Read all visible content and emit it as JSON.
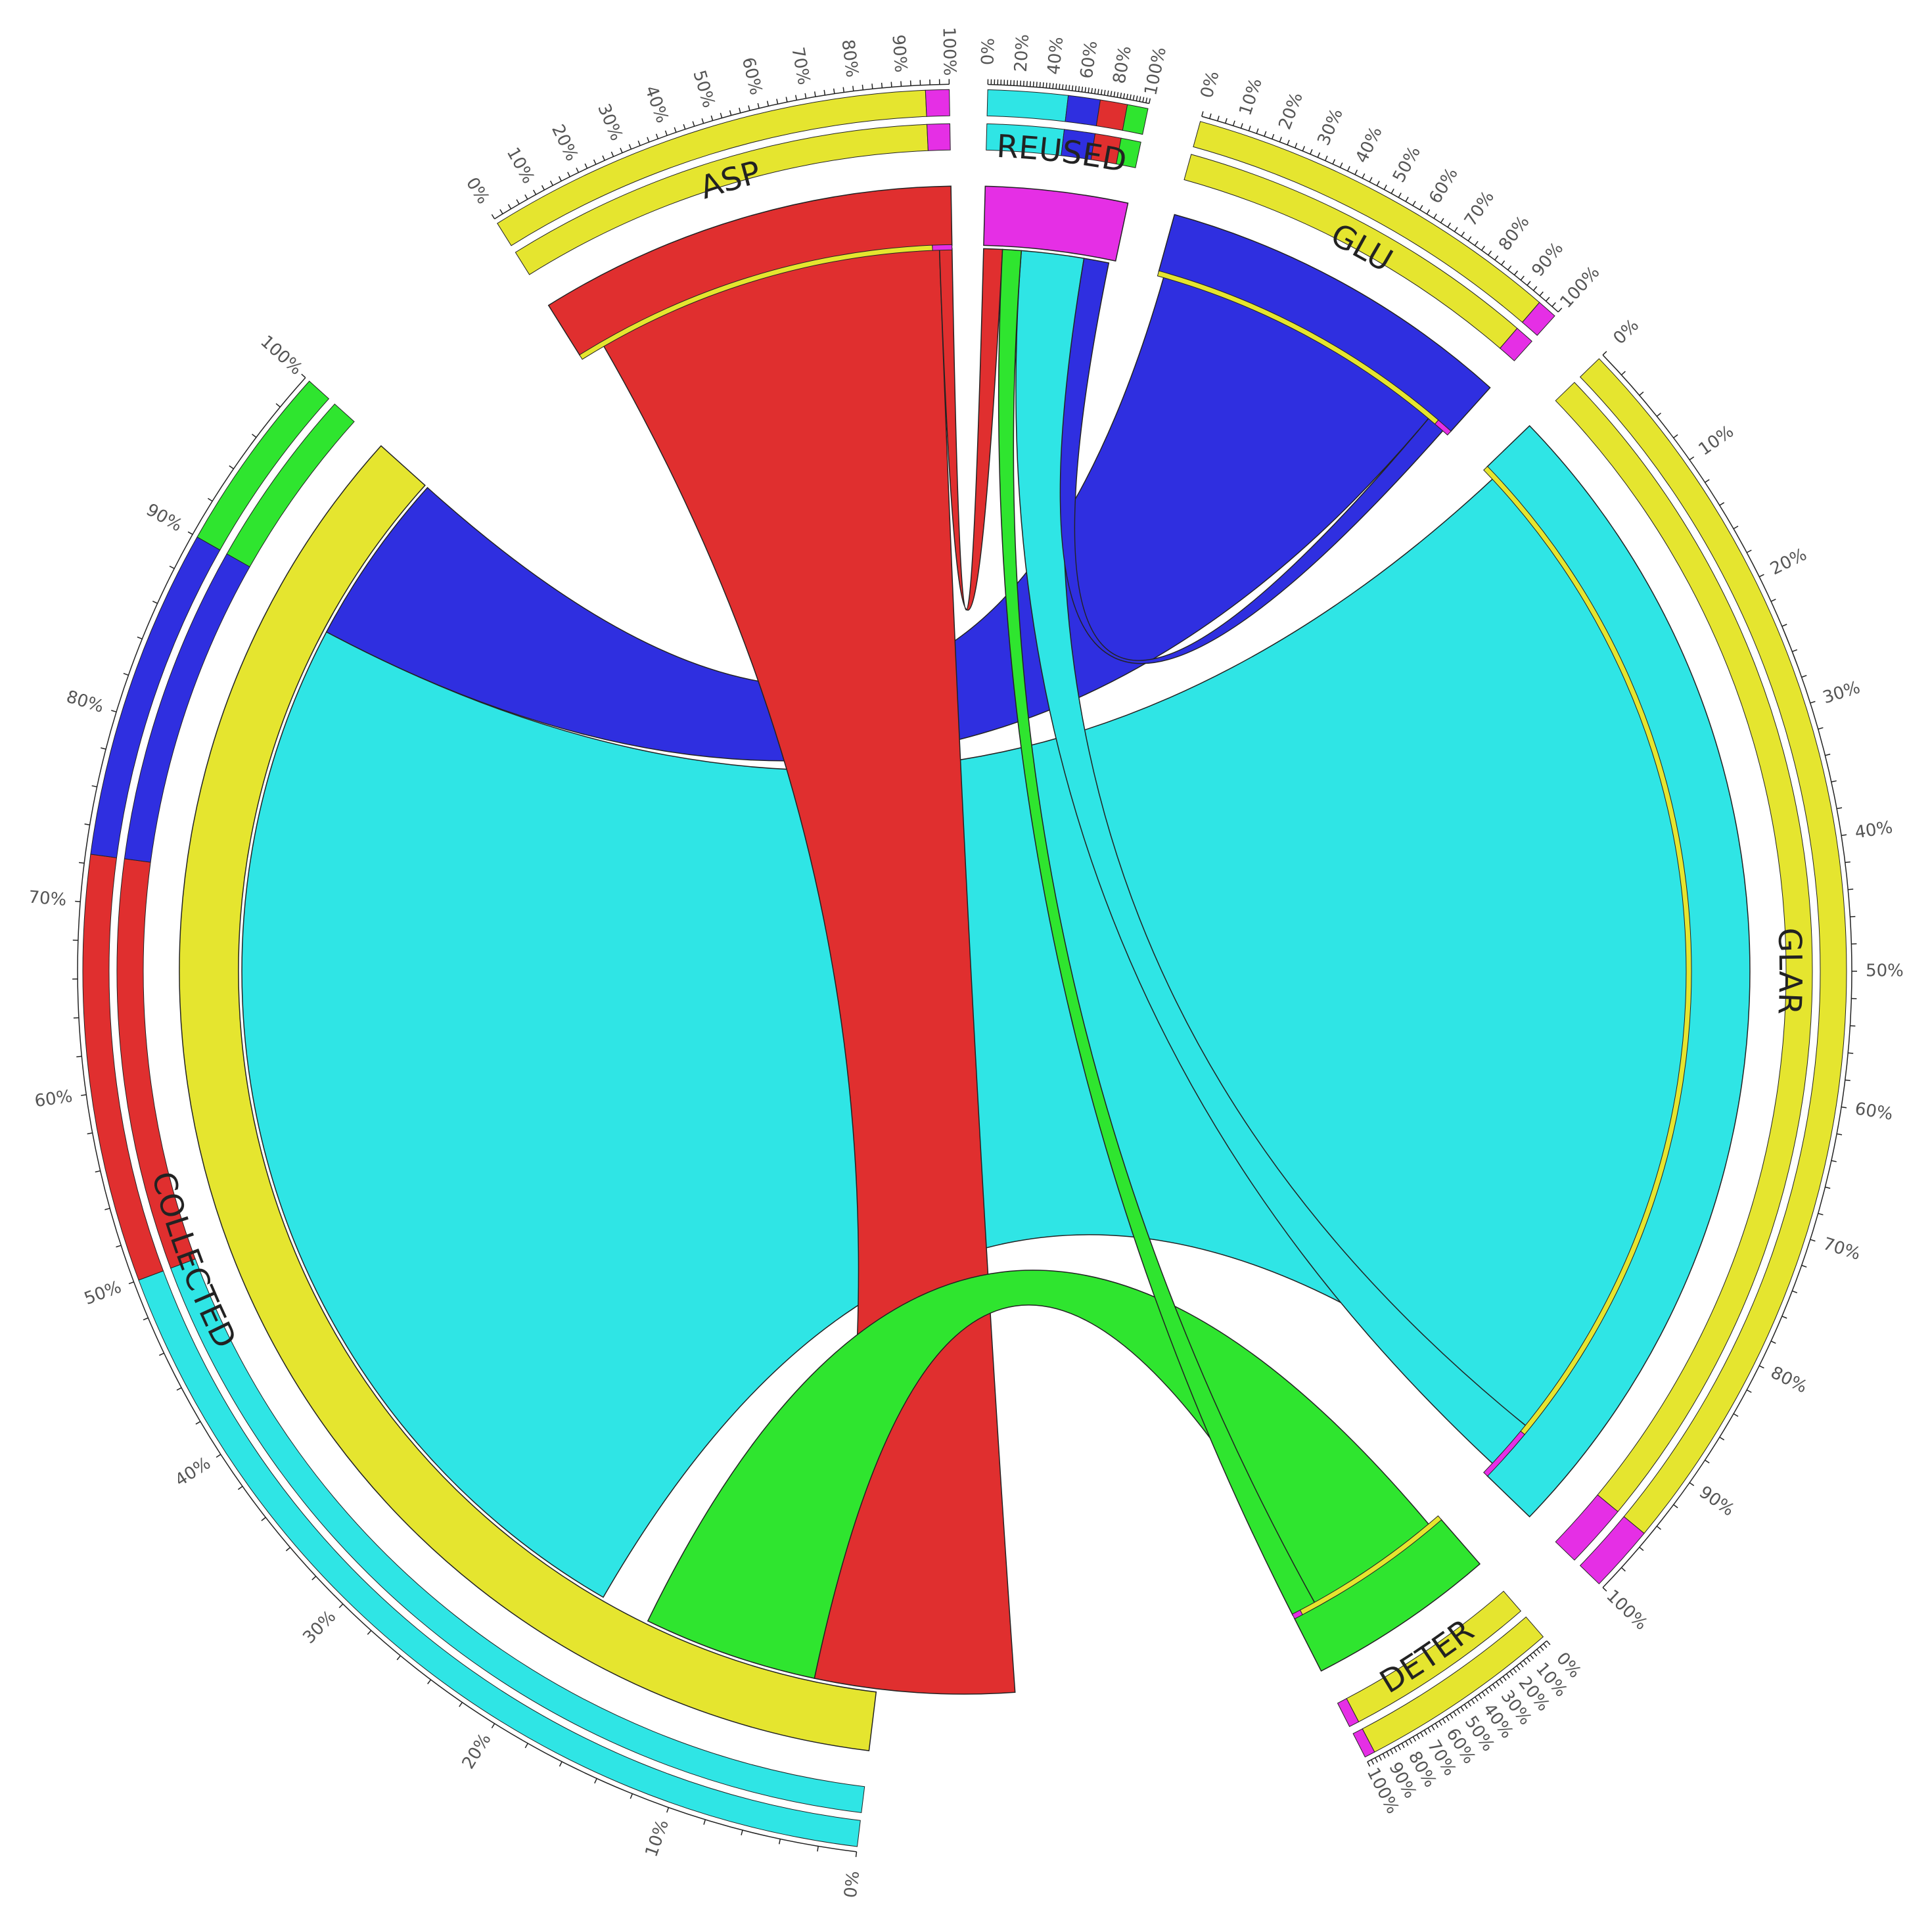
{
  "chart_data": {
    "type": "chord",
    "title": "",
    "colors": {
      "GLAR": "#2fe5e5",
      "GLU": "#2f2fe0",
      "ASP": "#e02f2f",
      "DETER": "#2fe52f",
      "REUSED": "#e52fe5",
      "COLLECTED": "#e5e52f"
    },
    "segments": [
      {
        "name": "COLLECTED",
        "label": "COLLECTED",
        "start_deg": 187,
        "end_deg": 312,
        "color": "#e5e52f"
      },
      {
        "name": "ASP",
        "label": "ASP",
        "start_deg": 328,
        "end_deg": 359,
        "color": "#e02f2f"
      },
      {
        "name": "REUSED",
        "label": "REUSED",
        "start_deg": 1.5,
        "end_deg": 12,
        "color": "#e52fe5"
      },
      {
        "name": "GLU",
        "label": "GLU",
        "start_deg": 15.5,
        "end_deg": 42,
        "color": "#2f2fe0"
      },
      {
        "name": "GLAR",
        "label": "GLAR",
        "start_deg": 46,
        "end_deg": 134,
        "color": "#2fe5e5"
      },
      {
        "name": "DETER",
        "label": "DETER",
        "start_deg": 139,
        "end_deg": 153,
        "color": "#2fe52f"
      }
    ],
    "flows": [
      {
        "from": "GLAR",
        "to": "COLLECTED",
        "color": "#2fe5e5",
        "a1": 47,
        "a2": 129,
        "b1": 210,
        "b2": 298
      },
      {
        "from": "GLU",
        "to": "COLLECTED",
        "color": "#2f2fe0",
        "a1": 16,
        "a2": 40,
        "b1": 298,
        "b2": 312
      },
      {
        "from": "ASP",
        "to": "COLLECTED",
        "color": "#e02f2f",
        "a1": 330,
        "a2": 358,
        "b1": 176,
        "b2": 192
      },
      {
        "from": "DETER",
        "to": "COLLECTED",
        "color": "#2fe52f",
        "a1": 140,
        "a2": 151,
        "b1": 192,
        "b2": 206
      },
      {
        "from": "REUSED",
        "to": "GLAR",
        "color": "#2fe5e5",
        "a1": 4.5,
        "a2": 9.5,
        "b1": 129,
        "b2": 133
      },
      {
        "from": "REUSED",
        "to": "GLU",
        "color": "#2f2fe0",
        "a1": 9.5,
        "a2": 11.5,
        "b1": 40,
        "b2": 41.5
      },
      {
        "from": "REUSED",
        "to": "ASP",
        "color": "#e02f2f",
        "a1": 1.5,
        "a2": 3.0,
        "b1": 358,
        "b2": 359
      },
      {
        "from": "REUSED",
        "to": "DETER",
        "color": "#2fe52f",
        "a1": 3.0,
        "a2": 4.5,
        "b1": 151,
        "b2": 153
      }
    ],
    "stack_bars": [
      {
        "segment": "COLLECTED",
        "parts": [
          {
            "color": "#2fe5e5",
            "frac": 0.5
          },
          {
            "color": "#e02f2f",
            "frac": 0.225
          },
          {
            "color": "#2f2fe0",
            "frac": 0.175
          },
          {
            "color": "#2fe52f",
            "frac": 0.1
          }
        ]
      },
      {
        "segment": "ASP",
        "parts": [
          {
            "color": "#e5e52f",
            "frac": 0.95
          },
          {
            "color": "#e52fe5",
            "frac": 0.05
          }
        ]
      },
      {
        "segment": "REUSED",
        "parts": [
          {
            "color": "#2fe5e5",
            "frac": 0.5
          },
          {
            "color": "#2f2fe0",
            "frac": 0.2
          },
          {
            "color": "#e02f2f",
            "frac": 0.17
          },
          {
            "color": "#2fe52f",
            "frac": 0.13
          }
        ]
      },
      {
        "segment": "GLU",
        "parts": [
          {
            "color": "#e5e52f",
            "frac": 0.95
          },
          {
            "color": "#e52fe5",
            "frac": 0.05
          }
        ]
      },
      {
        "segment": "GLAR",
        "parts": [
          {
            "color": "#e5e52f",
            "frac": 0.95
          },
          {
            "color": "#e52fe5",
            "frac": 0.05
          }
        ]
      },
      {
        "segment": "DETER",
        "parts": [
          {
            "color": "#e5e52f",
            "frac": 0.95
          },
          {
            "color": "#e52fe5",
            "frac": 0.05
          }
        ]
      }
    ],
    "inner_fill": [
      {
        "segment": "ASP",
        "color": "#e5e52f",
        "frac": 0.95,
        "tail_color": "#e52fe5"
      },
      {
        "segment": "GLU",
        "color": "#e5e52f",
        "frac": 0.95,
        "tail_color": "#e52fe5"
      },
      {
        "segment": "GLAR",
        "color": "#e5e52f",
        "frac": 0.95,
        "tail_color": "#e52fe5"
      },
      {
        "segment": "DETER",
        "color": "#e5e52f",
        "frac": 0.95,
        "tail_color": "#e52fe5"
      }
    ],
    "tick_labels": [
      "0%",
      "10%",
      "20%",
      "30%",
      "40%",
      "50%",
      "60%",
      "70%",
      "80%",
      "90%",
      "100%"
    ],
    "reused_tick_labels": [
      "0%",
      "20%",
      "40%",
      "60%",
      "80%",
      "100%"
    ],
    "segment_ticks": [
      {
        "segment": "COLLECTED",
        "labels": [
          "0%",
          "10%",
          "20%",
          "30%",
          "40%",
          "50%",
          "60%",
          "70%",
          "80%",
          "90%",
          "100%"
        ]
      },
      {
        "segment": "ASP",
        "labels": [
          "0%",
          "10%",
          "20%",
          "30%",
          "40%",
          "50%",
          "60%",
          "70%",
          "80%",
          "90%",
          "100%"
        ]
      },
      {
        "segment": "REUSED",
        "labels": [
          "0%",
          "20%",
          "40%",
          "60%",
          "80%",
          "100%"
        ]
      },
      {
        "segment": "GLU",
        "labels": [
          "0%",
          "10%",
          "20%",
          "30%",
          "40%",
          "50%",
          "60%",
          "70%",
          "80%",
          "90%",
          "100%"
        ]
      },
      {
        "segment": "GLAR",
        "labels": [
          "0%",
          "10%",
          "20%",
          "30%",
          "40%",
          "50%",
          "60%",
          "70%",
          "80%",
          "90%",
          "100%"
        ]
      },
      {
        "segment": "DETER",
        "labels": [
          "0%",
          "10%",
          "20%",
          "30%",
          "40%",
          "50%",
          "60%",
          "70%",
          "80%",
          "90%",
          "100%"
        ]
      }
    ]
  }
}
